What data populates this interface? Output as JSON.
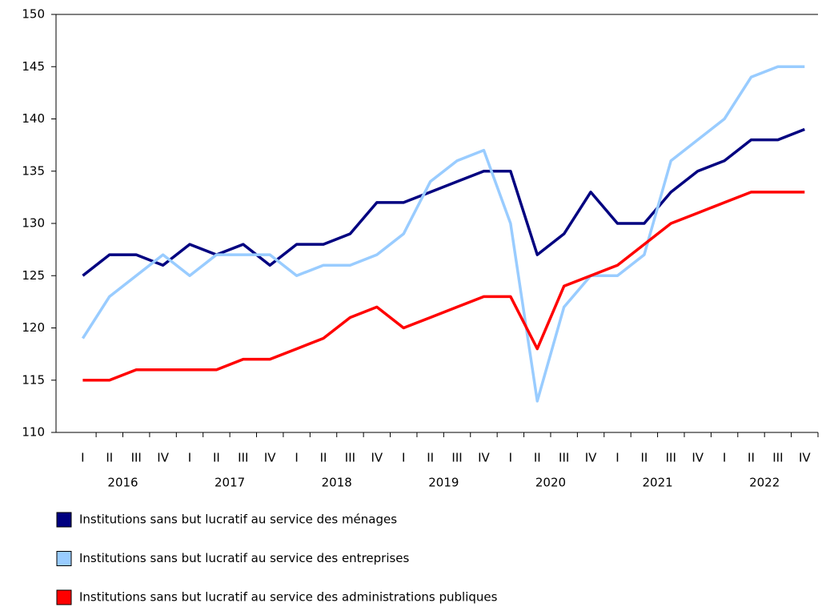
{
  "chart_data": {
    "type": "line",
    "categories": [
      "I",
      "II",
      "III",
      "IV",
      "I",
      "II",
      "III",
      "IV",
      "I",
      "II",
      "III",
      "IV",
      "I",
      "II",
      "III",
      "IV",
      "I",
      "II",
      "III",
      "IV",
      "I",
      "II",
      "III",
      "IV",
      "I",
      "II",
      "III",
      "IV"
    ],
    "years": [
      "2016",
      "2017",
      "2018",
      "2019",
      "2020",
      "2021",
      "2022"
    ],
    "series": [
      {
        "name": "Institutions sans but lucratif au service des ménages",
        "color": "#000080",
        "values": [
          125,
          127,
          127,
          126,
          128,
          127,
          128,
          126,
          128,
          128,
          129,
          132,
          132,
          133,
          134,
          135,
          135,
          127,
          129,
          133,
          130,
          130,
          133,
          135,
          136,
          138,
          138,
          139
        ]
      },
      {
        "name": "Institutions sans but lucratif au service des entreprises",
        "color": "#99ccff",
        "values": [
          119,
          123,
          125,
          127,
          125,
          127,
          127,
          127,
          125,
          126,
          126,
          127,
          129,
          134,
          136,
          137,
          130,
          113,
          122,
          125,
          125,
          127,
          136,
          138,
          140,
          144,
          145,
          145
        ]
      },
      {
        "name": "Institutions sans but lucratif au service des administrations publiques",
        "color": "#ff0000",
        "values": [
          115,
          115,
          116,
          116,
          116,
          116,
          117,
          117,
          118,
          119,
          121,
          122,
          120,
          121,
          122,
          123,
          123,
          118,
          124,
          125,
          126,
          128,
          130,
          131,
          132,
          133,
          133,
          133
        ]
      }
    ],
    "ylim": [
      110,
      150
    ],
    "yticks": [
      110,
      115,
      120,
      125,
      130,
      135,
      140,
      145,
      150
    ]
  }
}
